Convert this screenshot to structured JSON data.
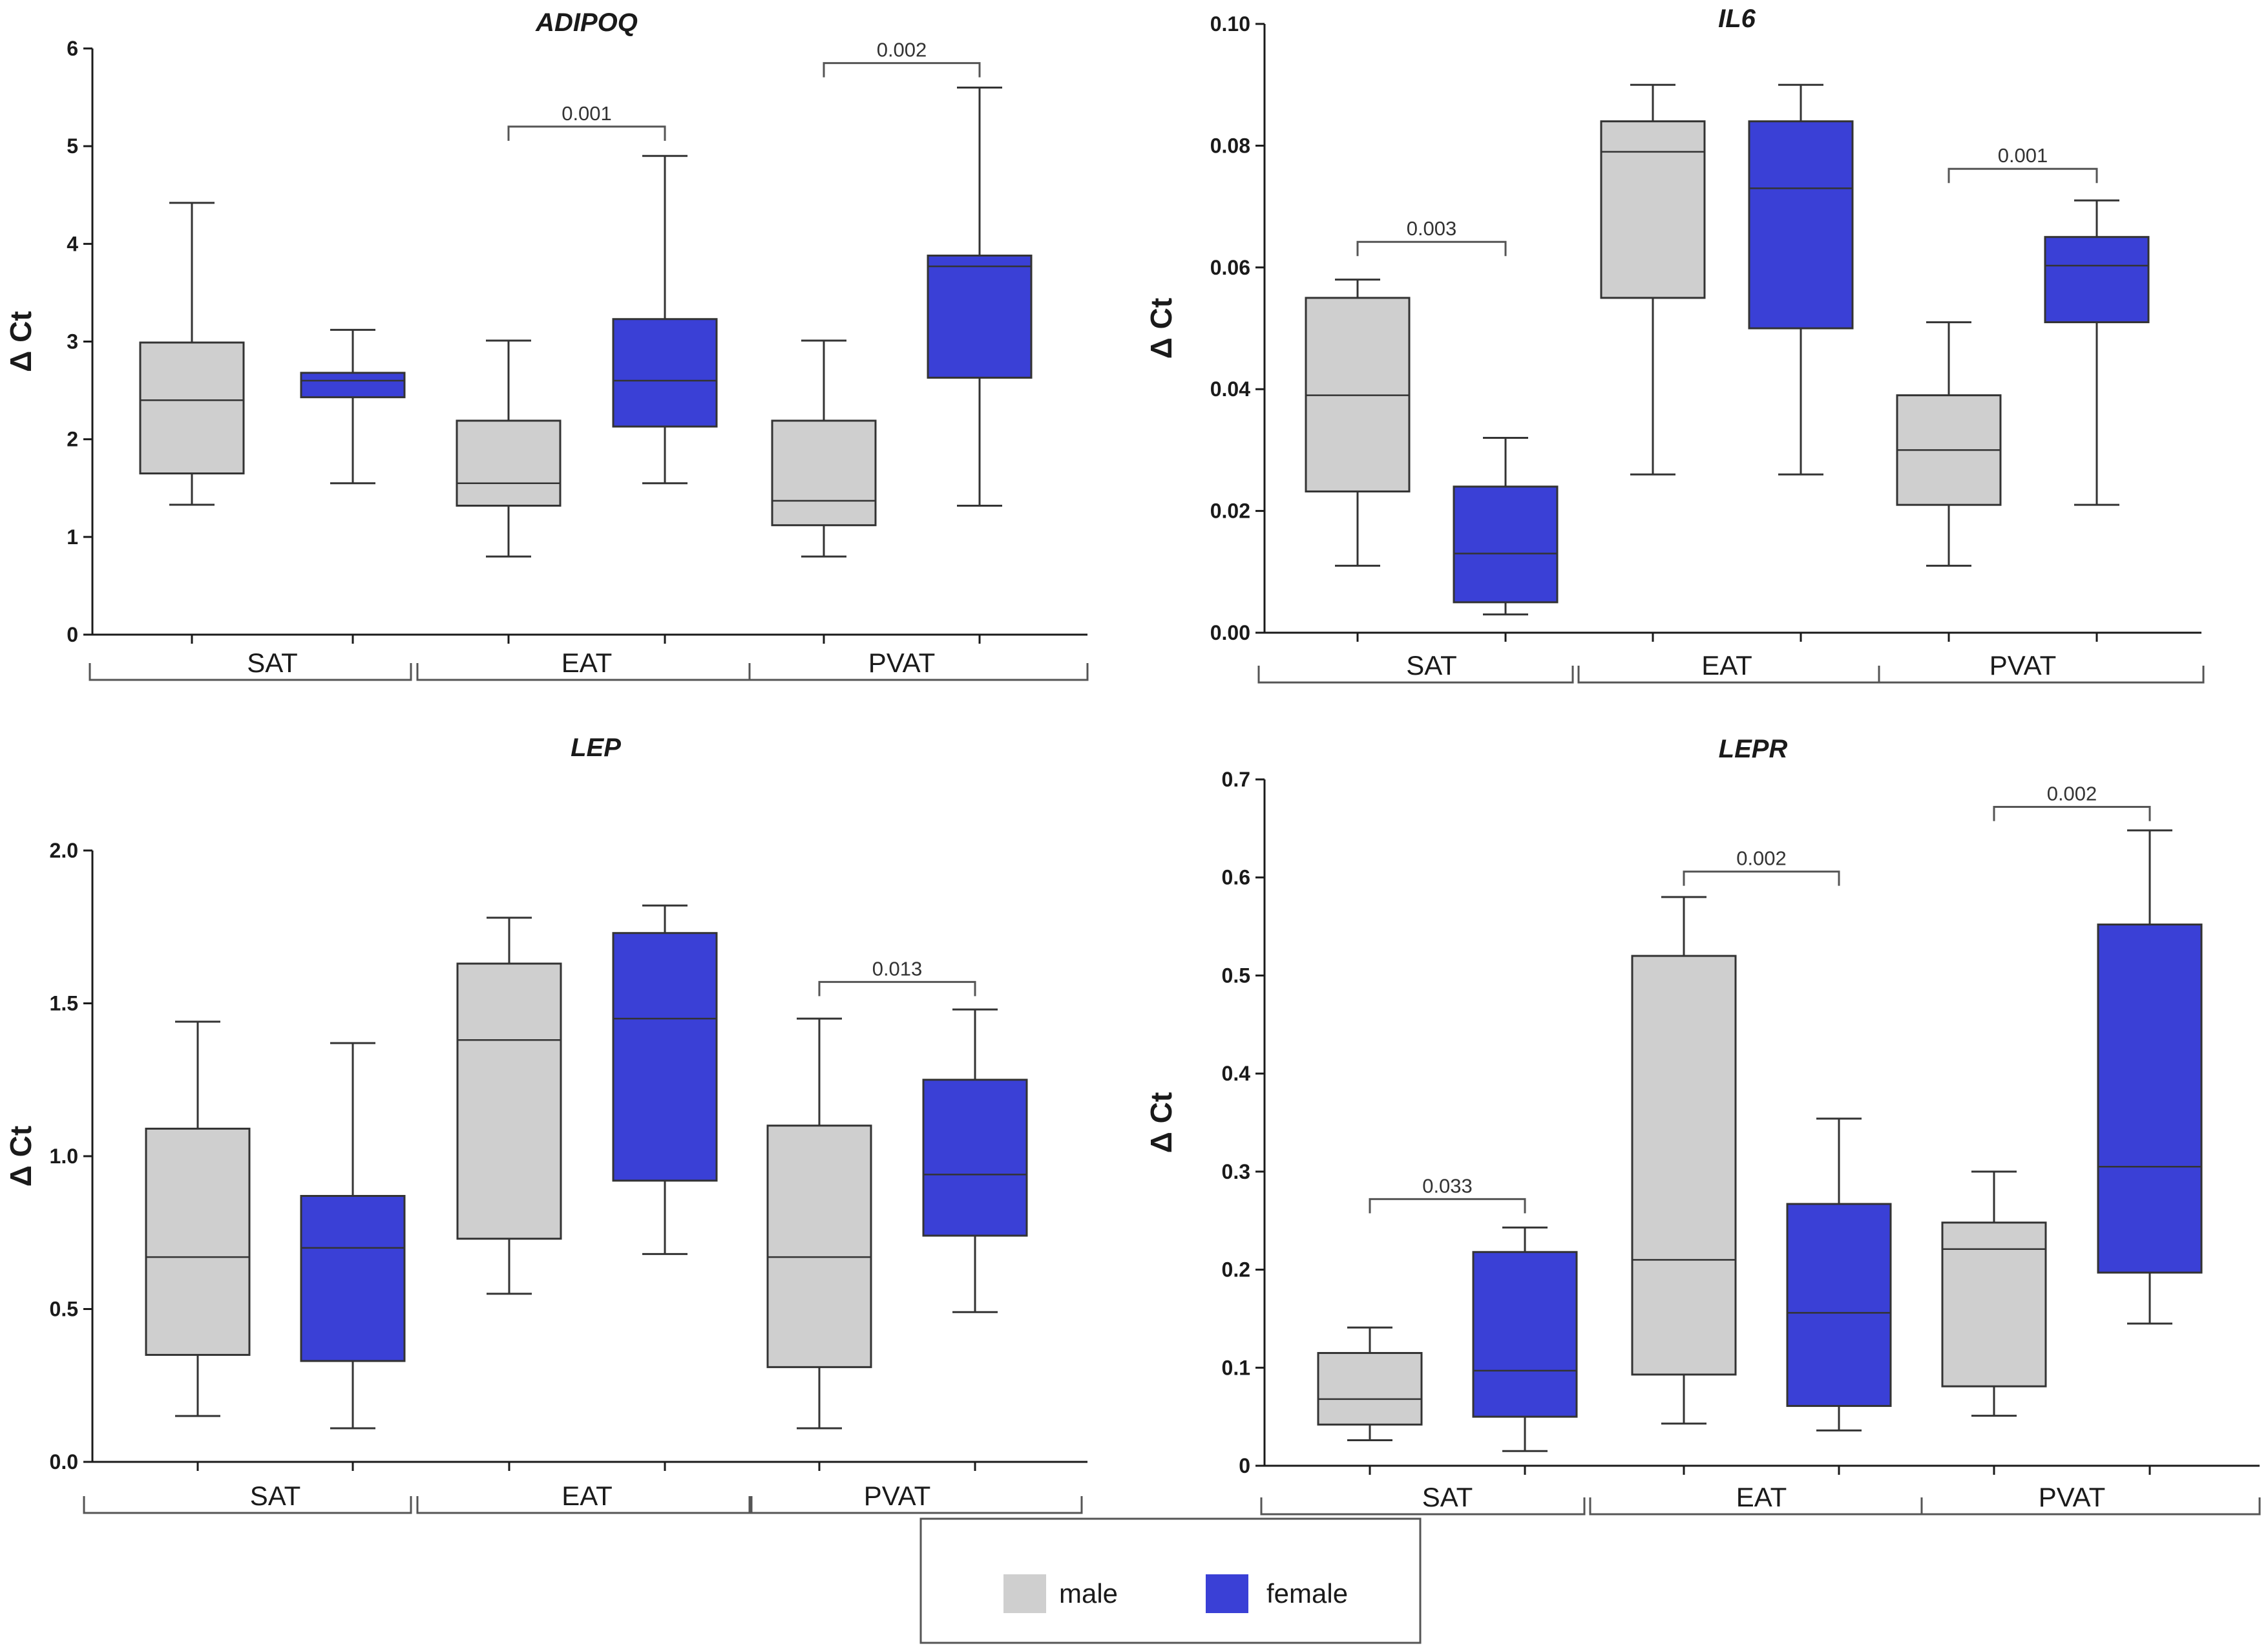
{
  "colors": {
    "male": "#cfcfcf",
    "female": "#3a40d6",
    "axis": "#1a1a1a"
  },
  "legend": {
    "items": [
      {
        "label": "male",
        "color": "#cfcfcf"
      },
      {
        "label": "female",
        "color": "#3a40d6"
      }
    ]
  },
  "chart_data": [
    {
      "type": "box",
      "title": "ADIPOQ",
      "ylabel": "Δ Ct",
      "ylim": [
        0,
        6
      ],
      "yticks": [
        0,
        1,
        2,
        3,
        4,
        5,
        6
      ],
      "tick_labels": [
        "0",
        "1",
        "2",
        "3",
        "4",
        "5",
        "6"
      ],
      "groups": [
        "SAT",
        "EAT",
        "PVAT"
      ],
      "series": [
        {
          "name": "male",
          "boxes": [
            {
              "group": "SAT",
              "min": 1.33,
              "q1": 1.65,
              "median": 2.4,
              "q3": 2.99,
              "max": 4.42
            },
            {
              "group": "EAT",
              "min": 0.8,
              "q1": 1.32,
              "median": 1.55,
              "q3": 2.19,
              "max": 3.01
            },
            {
              "group": "PVAT",
              "min": 0.8,
              "q1": 1.12,
              "median": 1.37,
              "q3": 2.19,
              "max": 3.01
            }
          ]
        },
        {
          "name": "female",
          "boxes": [
            {
              "group": "SAT",
              "min": 1.55,
              "q1": 2.43,
              "median": 2.6,
              "q3": 2.68,
              "max": 3.12
            },
            {
              "group": "EAT",
              "min": 1.55,
              "q1": 2.13,
              "median": 2.6,
              "q3": 3.23,
              "max": 4.9
            },
            {
              "group": "PVAT",
              "min": 1.32,
              "q1": 2.63,
              "median": 3.77,
              "q3": 3.88,
              "max": 5.6
            }
          ]
        }
      ],
      "significance": [
        {
          "group": "EAT",
          "label": "0.001",
          "y": 5.2
        },
        {
          "group": "PVAT",
          "label": "0.002",
          "y": 5.85
        }
      ]
    },
    {
      "type": "box",
      "title": "IL6",
      "ylabel": "Δ Ct",
      "ylim": [
        0,
        0.1
      ],
      "yticks": [
        0,
        0.02,
        0.04,
        0.06,
        0.08,
        0.1
      ],
      "tick_labels": [
        "0.00",
        "0.02",
        "0.04",
        "0.06",
        "0.08",
        "0.10"
      ],
      "groups": [
        "SAT",
        "EAT",
        "PVAT"
      ],
      "series": [
        {
          "name": "male",
          "boxes": [
            {
              "group": "SAT",
              "min": 0.011,
              "q1": 0.0232,
              "median": 0.039,
              "q3": 0.055,
              "max": 0.058
            },
            {
              "group": "EAT",
              "min": 0.026,
              "q1": 0.055,
              "median": 0.079,
              "q3": 0.084,
              "max": 0.09
            },
            {
              "group": "PVAT",
              "min": 0.011,
              "q1": 0.021,
              "median": 0.03,
              "q3": 0.039,
              "max": 0.051
            }
          ]
        },
        {
          "name": "female",
          "boxes": [
            {
              "group": "SAT",
              "min": 0.003,
              "q1": 0.005,
              "median": 0.013,
              "q3": 0.024,
              "max": 0.032
            },
            {
              "group": "EAT",
              "min": 0.026,
              "q1": 0.05,
              "median": 0.073,
              "q3": 0.084,
              "max": 0.09
            },
            {
              "group": "PVAT",
              "min": 0.021,
              "q1": 0.051,
              "median": 0.0603,
              "q3": 0.065,
              "max": 0.071
            }
          ]
        }
      ],
      "significance": [
        {
          "group": "SAT",
          "label": "0.003",
          "y": 0.0642
        },
        {
          "group": "PVAT",
          "label": "0.001",
          "y": 0.0762
        }
      ]
    },
    {
      "type": "box",
      "title": "LEP",
      "ylabel": "Δ Ct",
      "ylim": [
        0,
        2
      ],
      "yticks": [
        0,
        0.5,
        1,
        1.5,
        2
      ],
      "tick_labels": [
        "0.0",
        "0.5",
        "1.0",
        "1.5",
        "2.0"
      ],
      "groups": [
        "SAT",
        "EAT",
        "PVAT"
      ],
      "series": [
        {
          "name": "male",
          "boxes": [
            {
              "group": "SAT",
              "min": 0.15,
              "q1": 0.35,
              "median": 0.67,
              "q3": 1.09,
              "max": 1.44
            },
            {
              "group": "EAT",
              "min": 0.55,
              "q1": 0.73,
              "median": 1.38,
              "q3": 1.63,
              "max": 1.78
            },
            {
              "group": "PVAT",
              "min": 0.11,
              "q1": 0.31,
              "median": 0.67,
              "q3": 1.1,
              "max": 1.45
            }
          ]
        },
        {
          "name": "female",
          "boxes": [
            {
              "group": "SAT",
              "min": 0.11,
              "q1": 0.33,
              "median": 0.7,
              "q3": 0.87,
              "max": 1.37
            },
            {
              "group": "EAT",
              "min": 0.68,
              "q1": 0.92,
              "median": 1.45,
              "q3": 1.73,
              "max": 1.82
            },
            {
              "group": "PVAT",
              "min": 0.49,
              "q1": 0.74,
              "median": 0.94,
              "q3": 1.25,
              "max": 1.48
            }
          ]
        }
      ],
      "significance": [
        {
          "group": "PVAT",
          "label": "0.013",
          "y": 1.57
        }
      ]
    },
    {
      "type": "box",
      "title": "LEPR",
      "ylabel": "Δ Ct",
      "ylim": [
        0,
        0.7
      ],
      "yticks": [
        0,
        0.1,
        0.2,
        0.3,
        0.4,
        0.5,
        0.6,
        0.7
      ],
      "tick_labels": [
        "0",
        "0.1",
        "0.2",
        "0.3",
        "0.4",
        "0.5",
        "0.6",
        "0.7"
      ],
      "groups": [
        "SAT",
        "EAT",
        "PVAT"
      ],
      "series": [
        {
          "name": "male",
          "boxes": [
            {
              "group": "SAT",
              "min": 0.026,
              "q1": 0.042,
              "median": 0.068,
              "q3": 0.115,
              "max": 0.141
            },
            {
              "group": "EAT",
              "min": 0.043,
              "q1": 0.093,
              "median": 0.21,
              "q3": 0.52,
              "max": 0.58
            },
            {
              "group": "PVAT",
              "min": 0.051,
              "q1": 0.081,
              "median": 0.221,
              "q3": 0.248,
              "max": 0.3
            }
          ]
        },
        {
          "name": "female",
          "boxes": [
            {
              "group": "SAT",
              "min": 0.015,
              "q1": 0.05,
              "median": 0.097,
              "q3": 0.218,
              "max": 0.243
            },
            {
              "group": "EAT",
              "min": 0.036,
              "q1": 0.061,
              "median": 0.156,
              "q3": 0.267,
              "max": 0.354
            },
            {
              "group": "PVAT",
              "min": 0.145,
              "q1": 0.197,
              "median": 0.305,
              "q3": 0.552,
              "max": 0.648
            }
          ]
        }
      ],
      "significance": [
        {
          "group": "SAT",
          "label": "0.033",
          "y": 0.272
        },
        {
          "group": "EAT",
          "label": "0.002",
          "y": 0.606
        },
        {
          "group": "PVAT",
          "label": "0.002",
          "y": 0.672
        }
      ]
    }
  ]
}
